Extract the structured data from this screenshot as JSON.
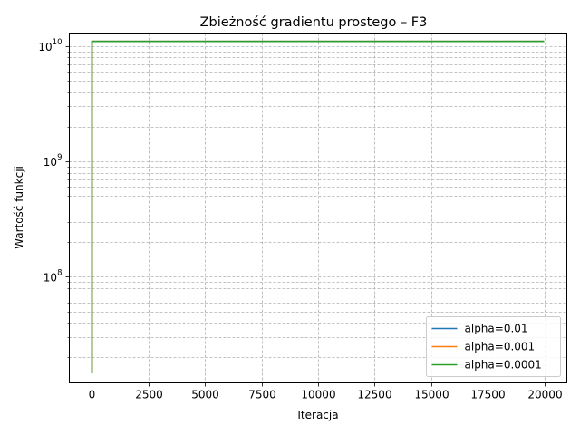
{
  "chart_data": {
    "type": "line",
    "title": "Zbieżność gradientu prostego – F3",
    "xlabel": "Iteracja",
    "ylabel": "Wartość funkcji",
    "xlim": [
      -1000,
      21000
    ],
    "ylim": [
      12000000,
      13000000000
    ],
    "yscale": "log",
    "grid": true,
    "grid_style": "dashed",
    "legend_position": "lower right",
    "x_ticks": [
      0,
      2500,
      5000,
      7500,
      10000,
      12500,
      15000,
      17500,
      20000
    ],
    "y_major_ticks": [
      {
        "value": 100000000,
        "base": "10",
        "exp": "8"
      },
      {
        "value": 1000000000,
        "base": "10",
        "exp": "9"
      },
      {
        "value": 10000000000,
        "base": "10",
        "exp": "10"
      }
    ],
    "series": [
      {
        "name": "alpha=0.01",
        "color": "#1f77b4",
        "x": [
          0,
          1,
          20000
        ],
        "y": [
          14500000,
          11000000000,
          11000000000
        ]
      },
      {
        "name": "alpha=0.001",
        "color": "#ff7f0e",
        "x": [
          0,
          1,
          20000
        ],
        "y": [
          14500000,
          11000000000,
          11000000000
        ]
      },
      {
        "name": "alpha=0.0001",
        "color": "#2ca02c",
        "x": [
          0,
          1,
          20000
        ],
        "y": [
          14500000,
          11000000000,
          11000000000
        ]
      }
    ]
  }
}
